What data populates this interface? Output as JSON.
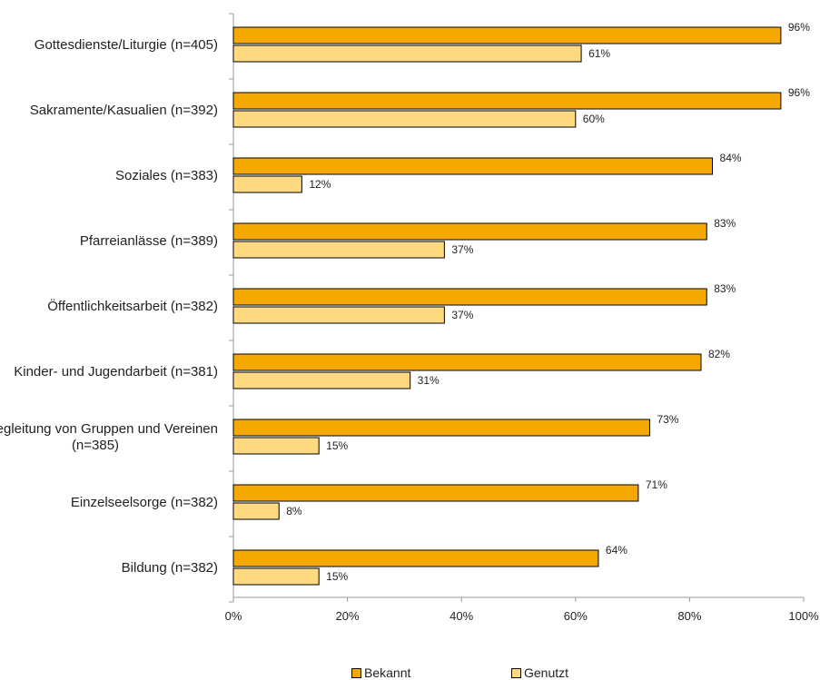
{
  "chart_data": {
    "type": "bar",
    "orientation": "horizontal",
    "categories": [
      [
        "Gottesdienste/Liturgie (n=405)"
      ],
      [
        "Sakramente/Kasualien (n=392)"
      ],
      [
        "Soziales (n=383)"
      ],
      [
        "Pfarreianlässe (n=389)"
      ],
      [
        "Öffentlichkeitsarbeit (n=382)"
      ],
      [
        "Kinder- und Jugendarbeit (n=381)"
      ],
      [
        "Begleitung von Gruppen und Vereinen",
        "(n=385)"
      ],
      [
        "Einzelseelsorge (n=382)"
      ],
      [
        "Bildung (n=382)"
      ]
    ],
    "series": [
      {
        "name": "Bekannt",
        "color": "#F5A800",
        "values": [
          96,
          96,
          84,
          83,
          83,
          82,
          73,
          71,
          64
        ],
        "labels": [
          "96%",
          "96%",
          "84%",
          "83%",
          "83%",
          "82%",
          "73%",
          "71%",
          "64%"
        ]
      },
      {
        "name": "Genutzt",
        "color": "#FFD980",
        "values": [
          61,
          60,
          12,
          37,
          37,
          31,
          15,
          8,
          15
        ],
        "labels": [
          "61%",
          "60%",
          "12%",
          "37%",
          "37%",
          "31%",
          "15%",
          "8%",
          "15%"
        ]
      }
    ],
    "xlim": [
      0,
      100
    ],
    "xticks": [
      0,
      20,
      40,
      60,
      80,
      100
    ],
    "xtick_labels": [
      "0%",
      "20%",
      "40%",
      "60%",
      "80%",
      "100%"
    ],
    "grid": false,
    "legend_position": "bottom",
    "title": "",
    "xlabel": "",
    "ylabel": ""
  }
}
